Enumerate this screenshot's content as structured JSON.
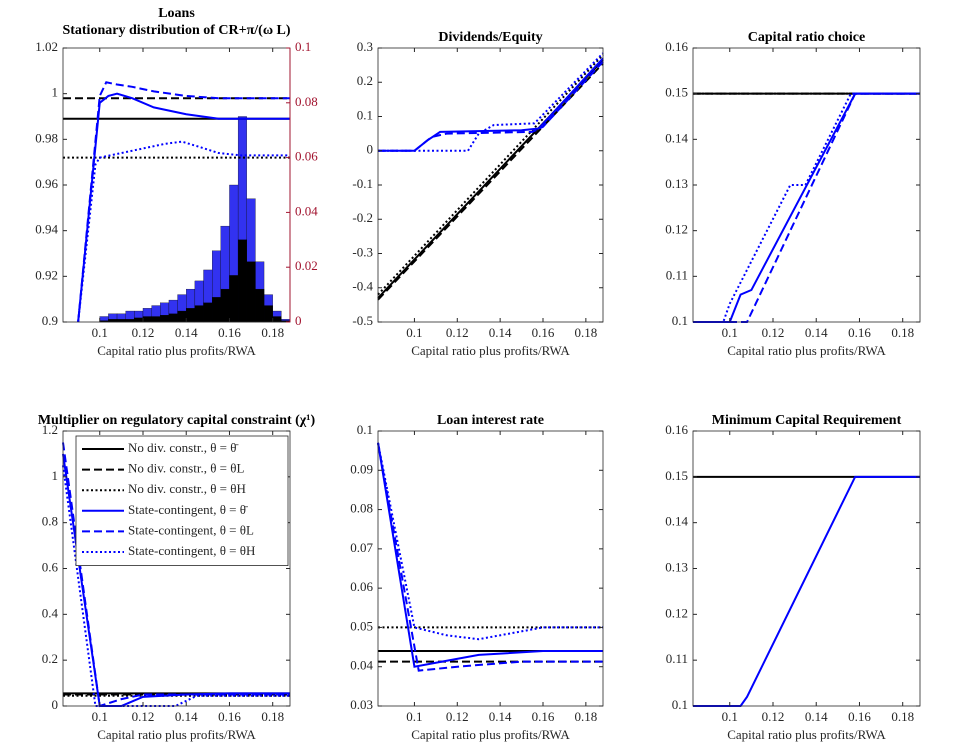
{
  "chart_data": [
    {
      "type": "combo",
      "title": "Loans",
      "subtitle": "Stationary distribution of CR+π/(ω L)",
      "xlabel": "Capital ratio plus profits/RWA",
      "xlim": [
        0.083,
        0.188
      ],
      "xticks": [
        0.1,
        0.12,
        0.14,
        0.16,
        0.18
      ],
      "ylim": [
        0.9,
        1.02
      ],
      "yticks": [
        0.9,
        0.92,
        0.94,
        0.96,
        0.98,
        1,
        1.02
      ],
      "y2lim": [
        0,
        0.1
      ],
      "y2ticks": [
        0,
        0.02,
        0.04,
        0.06,
        0.08,
        0.1
      ],
      "y2color": "#a2142f",
      "bins": [
        0.1,
        0.104,
        0.108,
        0.112,
        0.116,
        0.12,
        0.124,
        0.128,
        0.132,
        0.136,
        0.14,
        0.144,
        0.148,
        0.152,
        0.156,
        0.16,
        0.164,
        0.168,
        0.172,
        0.176,
        0.18,
        0.184,
        0.188
      ],
      "bar_series": [
        {
          "color": "#3232f0",
          "axis": "y2",
          "values": [
            0.002,
            0.003,
            0.003,
            0.004,
            0.004,
            0.005,
            0.006,
            0.007,
            0.008,
            0.01,
            0.012,
            0.015,
            0.019,
            0.026,
            0.035,
            0.05,
            0.075,
            0.045,
            0.022,
            0.01,
            0.004,
            0.001
          ]
        },
        {
          "color": "#000000",
          "axis": "y2",
          "values": [
            0.0005,
            0.001,
            0.001,
            0.001,
            0.0015,
            0.002,
            0.002,
            0.0025,
            0.003,
            0.004,
            0.005,
            0.006,
            0.007,
            0.009,
            0.012,
            0.017,
            0.03,
            0.022,
            0.012,
            0.006,
            0.002,
            0.0005
          ]
        }
      ],
      "series": [
        {
          "color": "#000000",
          "dash": "solid",
          "x": [
            0.083,
            0.188
          ],
          "values": [
            0.989,
            0.989
          ]
        },
        {
          "color": "#000000",
          "dash": "dashed",
          "x": [
            0.083,
            0.188
          ],
          "values": [
            0.998,
            0.998
          ]
        },
        {
          "color": "#000000",
          "dash": "dotted",
          "x": [
            0.083,
            0.188
          ],
          "values": [
            0.972,
            0.972
          ]
        },
        {
          "color": "#0000ff",
          "dash": "solid",
          "x": [
            0.09,
            0.1,
            0.104,
            0.108,
            0.115,
            0.125,
            0.14,
            0.155,
            0.165,
            0.188
          ],
          "values": [
            0.9,
            0.996,
            0.999,
            1.0,
            0.998,
            0.994,
            0.991,
            0.989,
            0.989,
            0.989
          ]
        },
        {
          "color": "#0000ff",
          "dash": "dashed",
          "x": [
            0.09,
            0.1,
            0.103,
            0.108,
            0.115,
            0.125,
            0.14,
            0.155,
            0.188
          ],
          "values": [
            0.9,
            0.999,
            1.005,
            1.004,
            1.003,
            1.001,
            0.999,
            0.998,
            0.998
          ]
        },
        {
          "color": "#0000ff",
          "dash": "dotted",
          "x": [
            0.09,
            0.098,
            0.1,
            0.11,
            0.12,
            0.13,
            0.138,
            0.145,
            0.155,
            0.165,
            0.188
          ],
          "values": [
            0.9,
            0.969,
            0.972,
            0.974,
            0.976,
            0.978,
            0.979,
            0.977,
            0.974,
            0.973,
            0.973
          ]
        }
      ]
    },
    {
      "type": "line",
      "title": "Dividends/Equity",
      "xlabel": "Capital ratio plus profits/RWA",
      "xlim": [
        0.083,
        0.188
      ],
      "xticks": [
        0.1,
        0.12,
        0.14,
        0.16,
        0.18
      ],
      "ylim": [
        -0.5,
        0.3
      ],
      "yticks": [
        -0.5,
        -0.4,
        -0.3,
        -0.2,
        -0.1,
        0,
        0.1,
        0.2,
        0.3
      ],
      "series": [
        {
          "color": "#000000",
          "dash": "solid",
          "x": [
            0.083,
            0.188
          ],
          "values": [
            -0.43,
            0.265
          ]
        },
        {
          "color": "#000000",
          "dash": "dashed",
          "x": [
            0.083,
            0.188
          ],
          "values": [
            -0.435,
            0.255
          ]
        },
        {
          "color": "#000000",
          "dash": "dotted",
          "x": [
            0.083,
            0.188
          ],
          "values": [
            -0.42,
            0.28
          ]
        },
        {
          "color": "#0000ff",
          "dash": "solid",
          "x": [
            0.083,
            0.1,
            0.106,
            0.112,
            0.15,
            0.158,
            0.188
          ],
          "values": [
            0,
            0,
            0.03,
            0.055,
            0.06,
            0.065,
            0.27
          ]
        },
        {
          "color": "#0000ff",
          "dash": "dashed",
          "x": [
            0.083,
            0.1,
            0.108,
            0.115,
            0.155,
            0.16,
            0.188
          ],
          "values": [
            0,
            0,
            0.04,
            0.05,
            0.055,
            0.07,
            0.26
          ]
        },
        {
          "color": "#0000ff",
          "dash": "dotted",
          "x": [
            0.083,
            0.125,
            0.13,
            0.137,
            0.156,
            0.188
          ],
          "values": [
            0,
            0,
            0.05,
            0.075,
            0.08,
            0.285
          ]
        }
      ]
    },
    {
      "type": "line",
      "title": "Capital ratio choice",
      "xlabel": "Capital ratio plus profits/RWA",
      "xlim": [
        0.083,
        0.188
      ],
      "xticks": [
        0.1,
        0.12,
        0.14,
        0.16,
        0.18
      ],
      "ylim": [
        0.1,
        0.16
      ],
      "yticks": [
        0.1,
        0.11,
        0.12,
        0.13,
        0.14,
        0.15,
        0.16
      ],
      "series": [
        {
          "color": "#000000",
          "dash": "solid",
          "x": [
            0.083,
            0.188
          ],
          "values": [
            0.15,
            0.15
          ]
        },
        {
          "color": "#000000",
          "dash": "dashed",
          "x": [
            0.083,
            0.188
          ],
          "values": [
            0.15,
            0.15
          ]
        },
        {
          "color": "#000000",
          "dash": "dotted",
          "x": [
            0.083,
            0.188
          ],
          "values": [
            0.15,
            0.15
          ]
        },
        {
          "color": "#0000ff",
          "dash": "solid",
          "x": [
            0.083,
            0.1,
            0.105,
            0.11,
            0.158,
            0.188
          ],
          "values": [
            0.1,
            0.1,
            0.106,
            0.107,
            0.15,
            0.15
          ]
        },
        {
          "color": "#0000ff",
          "dash": "dashed",
          "x": [
            0.083,
            0.108,
            0.112,
            0.116,
            0.158,
            0.188
          ],
          "values": [
            0.1,
            0.1,
            0.104,
            0.108,
            0.15,
            0.15
          ]
        },
        {
          "color": "#0000ff",
          "dash": "dotted",
          "x": [
            0.083,
            0.097,
            0.1,
            0.128,
            0.135,
            0.156,
            0.188
          ],
          "values": [
            0.1,
            0.1,
            0.104,
            0.13,
            0.13,
            0.15,
            0.15
          ]
        }
      ]
    },
    {
      "type": "line",
      "title": "Multiplier on regulatory capital constraint (χ¹)",
      "xlabel": "Capital ratio plus profits/RWA",
      "xlim": [
        0.083,
        0.188
      ],
      "xticks": [
        0.1,
        0.12,
        0.14,
        0.16,
        0.18
      ],
      "ylim": [
        0,
        1.2
      ],
      "yticks": [
        0,
        0.2,
        0.4,
        0.6,
        0.8,
        1,
        1.2
      ],
      "legend": "northeast",
      "series": [
        {
          "name": "No div. constr., θ = θ̄",
          "color": "#000000",
          "dash": "solid",
          "x": [
            0.083,
            0.188
          ],
          "values": [
            0.055,
            0.055
          ]
        },
        {
          "name": "No div. constr., θ = θL",
          "color": "#000000",
          "dash": "dashed",
          "x": [
            0.083,
            0.188
          ],
          "values": [
            0.05,
            0.05
          ]
        },
        {
          "name": "No div. constr., θ = θH",
          "color": "#000000",
          "dash": "dotted",
          "x": [
            0.083,
            0.188
          ],
          "values": [
            0.045,
            0.045
          ]
        },
        {
          "name": "State-contingent, θ = θ̄",
          "color": "#0000ff",
          "dash": "solid",
          "x": [
            0.083,
            0.1,
            0.11,
            0.12,
            0.14,
            0.16,
            0.188
          ],
          "values": [
            1.1,
            0,
            0,
            0.04,
            0.05,
            0.055,
            0.055
          ]
        },
        {
          "name": "State-contingent, θ = θL",
          "color": "#0000ff",
          "dash": "dashed",
          "x": [
            0.083,
            0.1,
            0.11,
            0.12,
            0.188
          ],
          "values": [
            1.15,
            0,
            0.03,
            0.05,
            0.05
          ]
        },
        {
          "name": "State-contingent, θ = θH",
          "color": "#0000ff",
          "dash": "dotted",
          "x": [
            0.083,
            0.098,
            0.135,
            0.145,
            0.188
          ],
          "values": [
            1.05,
            0,
            0,
            0.045,
            0.045
          ]
        }
      ]
    },
    {
      "type": "line",
      "title": "Loan interest rate",
      "xlabel": "Capital ratio plus profits/RWA",
      "xlim": [
        0.083,
        0.188
      ],
      "xticks": [
        0.1,
        0.12,
        0.14,
        0.16,
        0.18
      ],
      "ylim": [
        0.03,
        0.1
      ],
      "yticks": [
        0.03,
        0.04,
        0.05,
        0.06,
        0.07,
        0.08,
        0.09,
        0.1
      ],
      "series": [
        {
          "color": "#000000",
          "dash": "solid",
          "x": [
            0.083,
            0.188
          ],
          "values": [
            0.044,
            0.044
          ]
        },
        {
          "color": "#000000",
          "dash": "dashed",
          "x": [
            0.083,
            0.188
          ],
          "values": [
            0.0413,
            0.0413
          ]
        },
        {
          "color": "#000000",
          "dash": "dotted",
          "x": [
            0.083,
            0.188
          ],
          "values": [
            0.05,
            0.05
          ]
        },
        {
          "color": "#0000ff",
          "dash": "solid",
          "x": [
            0.083,
            0.1,
            0.11,
            0.13,
            0.16,
            0.188
          ],
          "values": [
            0.097,
            0.04,
            0.041,
            0.043,
            0.044,
            0.044
          ]
        },
        {
          "color": "#0000ff",
          "dash": "dashed",
          "x": [
            0.083,
            0.102,
            0.12,
            0.15,
            0.188
          ],
          "values": [
            0.097,
            0.039,
            0.04,
            0.0413,
            0.0413
          ]
        },
        {
          "color": "#0000ff",
          "dash": "dotted",
          "x": [
            0.083,
            0.1,
            0.115,
            0.13,
            0.16,
            0.188
          ],
          "values": [
            0.097,
            0.05,
            0.048,
            0.047,
            0.05,
            0.05
          ]
        }
      ]
    },
    {
      "type": "line",
      "title": "Minimum Capital Requirement",
      "xlabel": "Capital ratio plus profits/RWA",
      "xlim": [
        0.083,
        0.188
      ],
      "xticks": [
        0.1,
        0.12,
        0.14,
        0.16,
        0.18
      ],
      "ylim": [
        0.1,
        0.16
      ],
      "yticks": [
        0.1,
        0.11,
        0.12,
        0.13,
        0.14,
        0.15,
        0.16
      ],
      "series": [
        {
          "color": "#000000",
          "dash": "solid",
          "x": [
            0.083,
            0.188
          ],
          "values": [
            0.15,
            0.15
          ]
        },
        {
          "color": "#0000ff",
          "dash": "solid",
          "x": [
            0.083,
            0.105,
            0.108,
            0.158,
            0.188
          ],
          "values": [
            0.1,
            0.1,
            0.102,
            0.15,
            0.15
          ]
        }
      ]
    }
  ]
}
